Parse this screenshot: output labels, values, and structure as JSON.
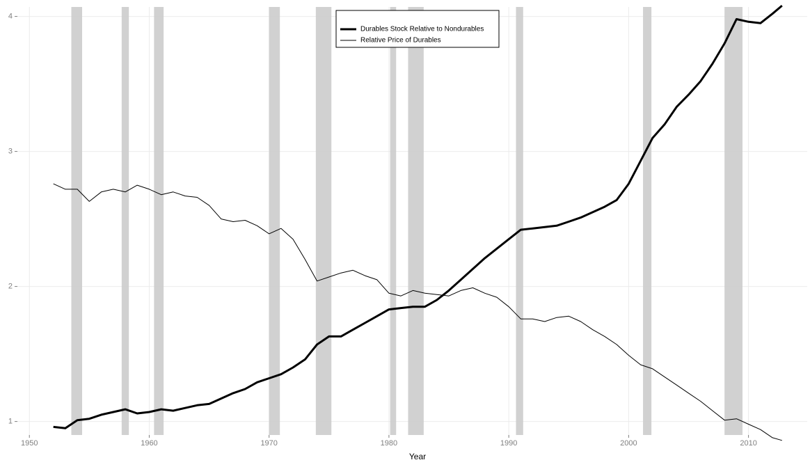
{
  "chart_data": {
    "type": "line",
    "x_label": "Year",
    "x": [
      1952,
      1953,
      1954,
      1955,
      1956,
      1957,
      1958,
      1959,
      1960,
      1961,
      1962,
      1963,
      1964,
      1965,
      1966,
      1967,
      1968,
      1969,
      1970,
      1971,
      1972,
      1973,
      1974,
      1975,
      1976,
      1977,
      1978,
      1979,
      1980,
      1981,
      1982,
      1983,
      1984,
      1985,
      1986,
      1987,
      1988,
      1989,
      1990,
      1991,
      1992,
      1993,
      1994,
      1995,
      1996,
      1997,
      1998,
      1999,
      2000,
      2001,
      2002,
      2003,
      2004,
      2005,
      2006,
      2007,
      2008,
      2009,
      2010,
      2011,
      2012,
      2012.8
    ],
    "series": [
      {
        "name": "Durables Stock Relative to Nondurables",
        "color": "#000000",
        "line_width": 3,
        "values": [
          0.96,
          0.95,
          1.01,
          1.02,
          1.05,
          1.07,
          1.09,
          1.06,
          1.07,
          1.09,
          1.08,
          1.1,
          1.12,
          1.13,
          1.17,
          1.21,
          1.24,
          1.29,
          1.32,
          1.35,
          1.4,
          1.46,
          1.57,
          1.63,
          1.63,
          1.68,
          1.73,
          1.78,
          1.83,
          1.84,
          1.85,
          1.85,
          1.9,
          1.97,
          2.05,
          2.13,
          2.21,
          2.28,
          2.35,
          2.42,
          2.43,
          2.44,
          2.45,
          2.48,
          2.51,
          2.55,
          2.59,
          2.64,
          2.76,
          2.93,
          3.1,
          3.2,
          3.33,
          3.42,
          3.52,
          3.65,
          3.8,
          3.98,
          3.96,
          3.95,
          4.02,
          4.08
        ]
      },
      {
        "name": "Relative Price of Durables",
        "color": "#000000",
        "line_width": 1,
        "values": [
          2.76,
          2.72,
          2.72,
          2.63,
          2.7,
          2.72,
          2.7,
          2.75,
          2.72,
          2.68,
          2.7,
          2.67,
          2.66,
          2.6,
          2.5,
          2.48,
          2.49,
          2.45,
          2.39,
          2.43,
          2.35,
          2.2,
          2.04,
          2.07,
          2.1,
          2.12,
          2.08,
          2.05,
          1.95,
          1.93,
          1.97,
          1.95,
          1.94,
          1.93,
          1.97,
          1.99,
          1.95,
          1.92,
          1.85,
          1.76,
          1.76,
          1.74,
          1.77,
          1.78,
          1.74,
          1.68,
          1.63,
          1.57,
          1.49,
          1.42,
          1.39,
          1.33,
          1.27,
          1.21,
          1.15,
          1.08,
          1.01,
          1.02,
          0.98,
          0.94,
          0.88,
          0.86
        ]
      }
    ],
    "recessions": [
      [
        1953.5,
        1954.4
      ],
      [
        1957.7,
        1958.3
      ],
      [
        1960.4,
        1961.2
      ],
      [
        1970.0,
        1970.9
      ],
      [
        1973.9,
        1975.2
      ],
      [
        1980.1,
        1980.6
      ],
      [
        1981.6,
        1982.9
      ],
      [
        1990.6,
        1991.2
      ],
      [
        2001.2,
        2001.9
      ],
      [
        2008.0,
        2009.5
      ]
    ],
    "recession_color": "#cccccc",
    "xlim": [
      1949,
      2014.9
    ],
    "xticks": [
      1950,
      1960,
      1970,
      1980,
      1990,
      2000,
      2010
    ],
    "ylim": [
      0.9,
      4.07
    ],
    "yticks": [
      1,
      2,
      3,
      4
    ],
    "grid": true,
    "legend": "top"
  }
}
